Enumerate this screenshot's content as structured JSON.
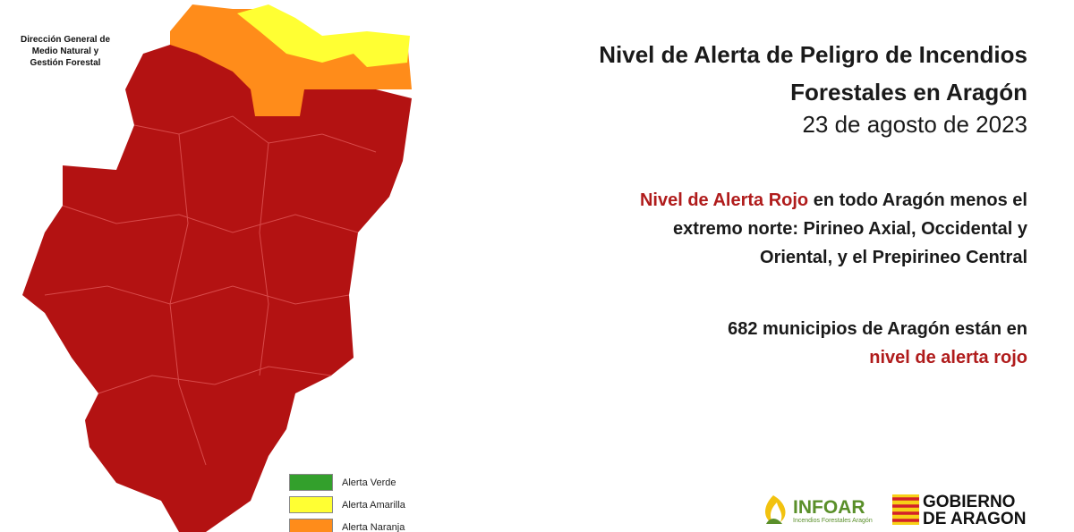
{
  "agency": {
    "lines": [
      "Dirección General de",
      "Medio Natural y",
      "Gestión Forestal"
    ]
  },
  "header": {
    "title_lines": [
      "Nivel de Alerta de Peligro de Incendios",
      "Forestales en Aragón"
    ],
    "date": "23 de agosto de 2023"
  },
  "summary": {
    "highlight": "Nivel de Alerta Rojo",
    "lines": [
      " en todo Aragón menos el",
      "extremo norte: Pirineo Axial, Occidental y",
      "Oriental, y el Prepirineo Central"
    ]
  },
  "municipalities": {
    "text": "682 municipios de Aragón están en",
    "highlight": "nivel de alerta rojo"
  },
  "legend": [
    {
      "label": "Alerta Verde",
      "color": "#33a02c"
    },
    {
      "label": "Alerta Amarilla",
      "color": "#ffff33"
    },
    {
      "label": "Alerta Naranja",
      "color": "#ff8c1a"
    }
  ],
  "logos": {
    "infoar": "INFOAR",
    "infoar_tagline": "Incendios Forestales Aragón",
    "gobierno": [
      "GOBIERNO",
      "DE ARAGON"
    ]
  }
}
